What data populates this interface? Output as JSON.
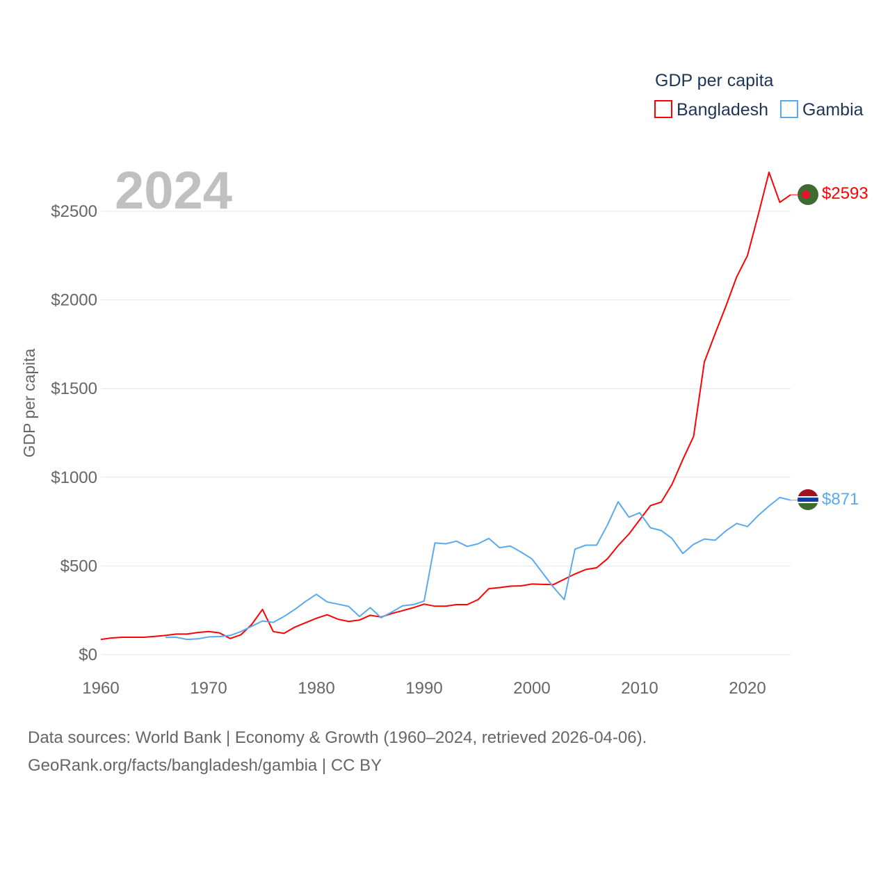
{
  "chart_data": {
    "type": "line",
    "title": "GDP per capita",
    "year_label": "2024",
    "ylabel": "GDP per capita",
    "xlabel": "",
    "xlim": [
      1960,
      2024
    ],
    "ylim": [
      0,
      2800
    ],
    "x_ticks": [
      1960,
      1970,
      1980,
      1990,
      2000,
      2010,
      2020
    ],
    "x_tick_labels": [
      "1960",
      "1970",
      "1980",
      "1990",
      "2000",
      "2010",
      "2020"
    ],
    "y_ticks": [
      0,
      500,
      1000,
      1500,
      2000,
      2500
    ],
    "y_tick_labels": [
      "$0",
      "$500",
      "$1000",
      "$1500",
      "$2000",
      "$2500"
    ],
    "grid": true,
    "legend_placement": "top-right",
    "series": [
      {
        "name": "Bangladesh",
        "color": "#ff0000",
        "end_label": "$2593",
        "start_year": 1960,
        "values": [
          86,
          94,
          98,
          98,
          98,
          103,
          108,
          116,
          116,
          125,
          130,
          123,
          91,
          112,
          170,
          255,
          130,
          120,
          155,
          180,
          205,
          225,
          200,
          187,
          195,
          222,
          212,
          232,
          248,
          265,
          285,
          273,
          273,
          282,
          282,
          310,
          372,
          378,
          386,
          388,
          398,
          396,
          395,
          425,
          455,
          480,
          490,
          540,
          615,
          680,
          760,
          840,
          860,
          960,
          1100,
          1230,
          1650,
          1810,
          1965,
          2130,
          2250,
          2480,
          2720,
          2550,
          2593
        ]
      },
      {
        "name": "Gambia",
        "color": "#5aa9ee",
        "end_label": "$871",
        "start_year": 1966,
        "values": [
          97,
          98,
          86,
          89,
          100,
          102,
          108,
          130,
          160,
          190,
          182,
          215,
          255,
          300,
          340,
          297,
          285,
          272,
          215,
          265,
          208,
          240,
          275,
          282,
          302,
          630,
          625,
          640,
          610,
          625,
          655,
          603,
          612,
          578,
          540,
          460,
          380,
          310,
          595,
          617,
          617,
          730,
          862,
          775,
          800,
          715,
          700,
          655,
          570,
          622,
          652,
          645,
          698,
          740,
          722,
          785,
          838,
          886,
          871
        ]
      }
    ]
  },
  "footer": {
    "line1": "Data sources: World Bank | Economy & Growth (1960–2024, retrieved 2026-04-06).",
    "line2": "GeoRank.org/facts/bangladesh/gambia | CC BY"
  }
}
